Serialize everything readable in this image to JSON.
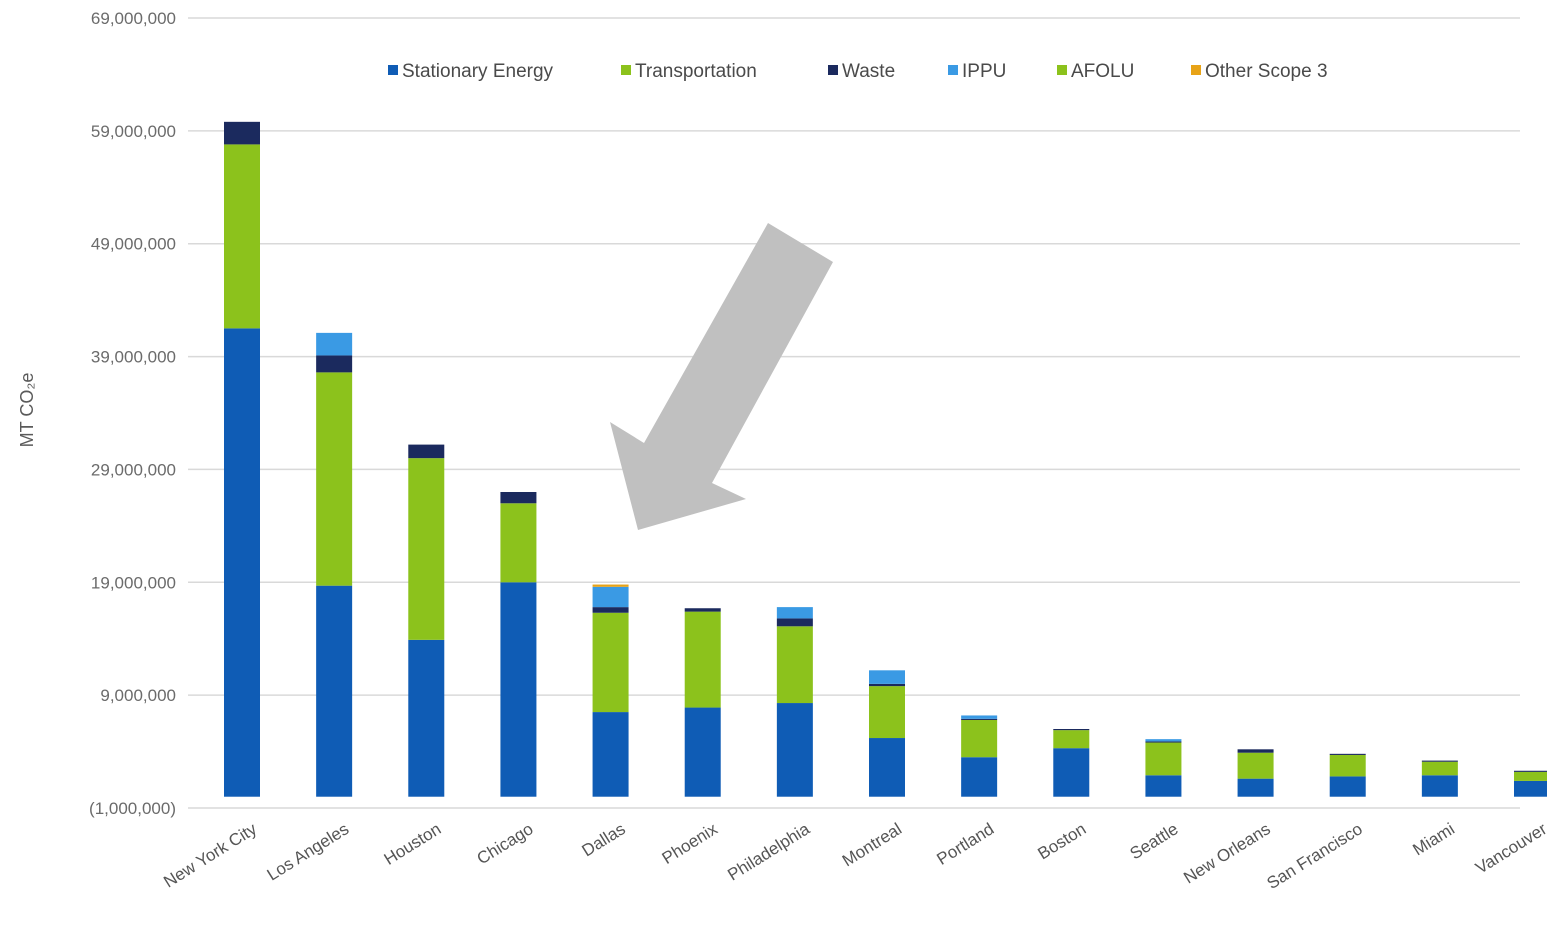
{
  "chart_data": {
    "type": "bar",
    "stacked": true,
    "ylabel": "MT CO₂e",
    "ylim": [
      -1000000,
      69000000
    ],
    "y_ticks": [
      69000000,
      59000000,
      49000000,
      39000000,
      29000000,
      19000000,
      9000000,
      -1000000
    ],
    "y_tick_labels": [
      "69,000,000",
      "59,000,000",
      "49,000,000",
      "39,000,000",
      "29,000,000",
      "19,000,000",
      "9,000,000",
      "(1,000,000)"
    ],
    "grid": true,
    "legend_position": "top",
    "categories": [
      "New York City",
      "Los Angeles",
      "Houston",
      "Chicago",
      "Dallas",
      "Phoenix",
      "Philadelphia",
      "Montreal",
      "Portland",
      "Boston",
      "Seattle",
      "New Orleans",
      "San Francisco",
      "Miami",
      "Vancouver"
    ],
    "series": [
      {
        "name": "Stationary Energy",
        "color": "#0f5cb5",
        "values": [
          41500000,
          18700000,
          13900000,
          19000000,
          7500000,
          7900000,
          8300000,
          5200000,
          3500000,
          4300000,
          1900000,
          1600000,
          1800000,
          1900000,
          1400000
        ]
      },
      {
        "name": "Transportation",
        "color": "#8cc21c",
        "values": [
          16300000,
          18900000,
          16100000,
          7000000,
          8800000,
          8500000,
          6800000,
          4600000,
          3300000,
          1600000,
          2900000,
          2300000,
          1900000,
          1200000,
          800000
        ]
      },
      {
        "name": "Waste",
        "color": "#1b2a5e",
        "values": [
          2000000,
          1500000,
          1200000,
          1000000,
          500000,
          300000,
          700000,
          200000,
          100000,
          100000,
          100000,
          300000,
          100000,
          100000,
          100000
        ]
      },
      {
        "name": "IPPU",
        "color": "#3a9ae4",
        "values": [
          0,
          2000000,
          0,
          0,
          1800000,
          0,
          1000000,
          1200000,
          300000,
          0,
          200000,
          0,
          0,
          0,
          0
        ]
      },
      {
        "name": "AFOLU",
        "color": "#8cc21c",
        "values": [
          0,
          0,
          0,
          0,
          0,
          0,
          0,
          0,
          0,
          0,
          0,
          0,
          0,
          0,
          0
        ]
      },
      {
        "name": "Other Scope 3",
        "color": "#e8a317",
        "values": [
          0,
          0,
          0,
          0,
          200000,
          0,
          0,
          0,
          0,
          0,
          0,
          0,
          0,
          0,
          0
        ]
      }
    ]
  },
  "annotation": {
    "type": "arrow",
    "color": "#c0c0c0"
  }
}
